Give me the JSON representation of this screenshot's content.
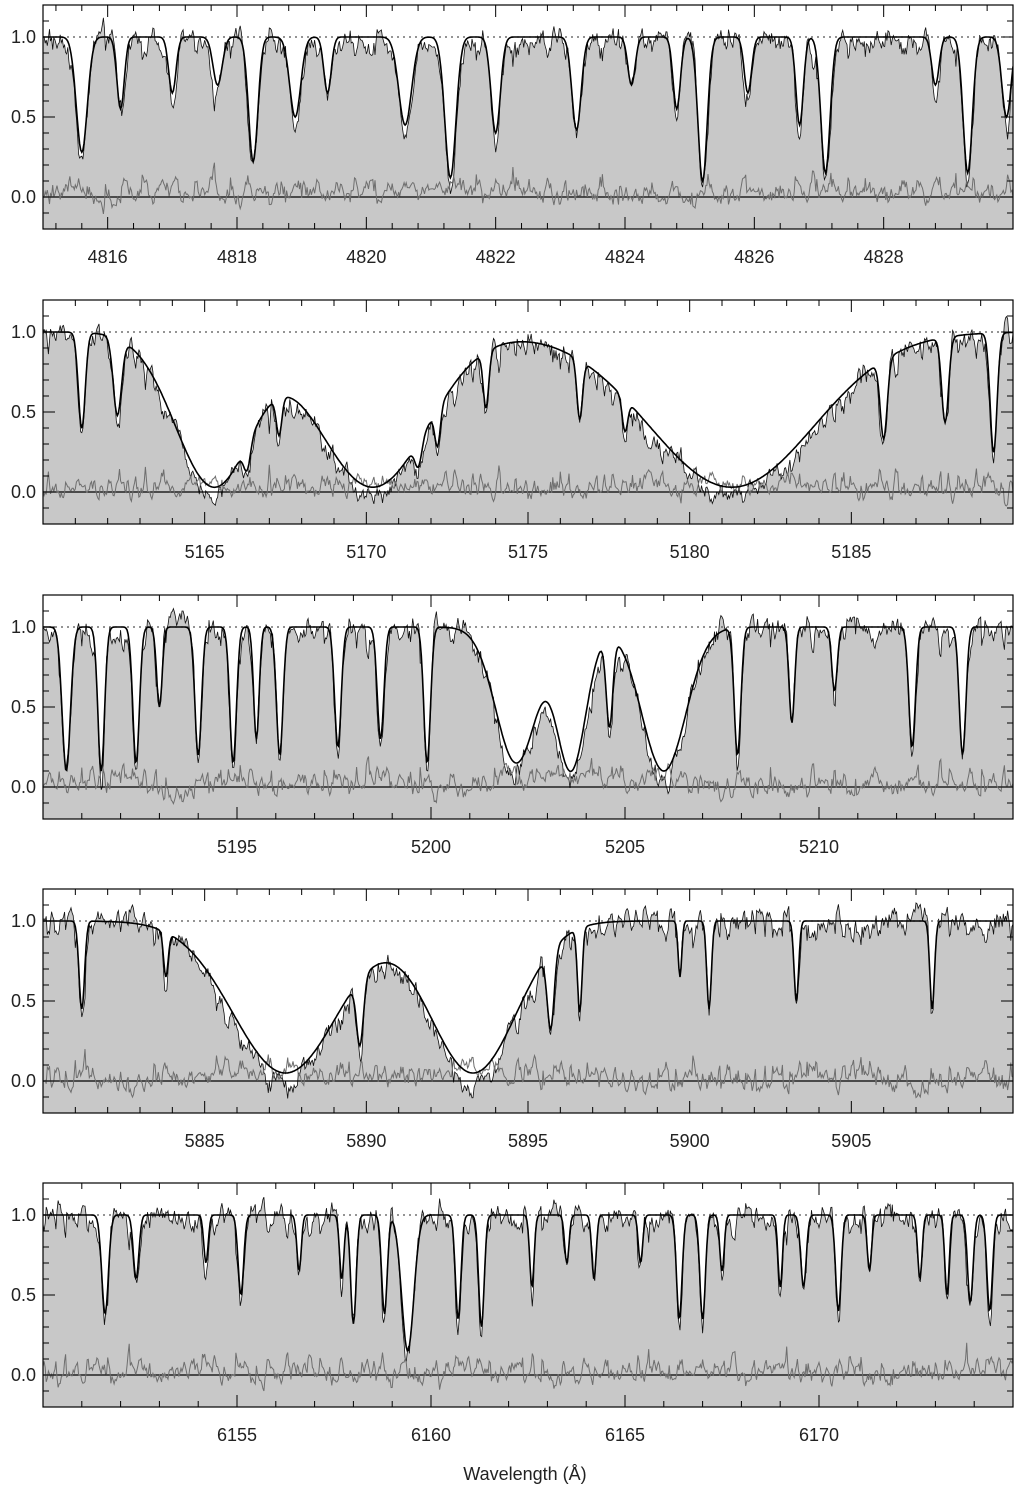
{
  "figure": {
    "xlabel": "Wavelength (Å)"
  },
  "colors": {
    "observed_fill": "#c8c8c8",
    "observed_line": "#111111",
    "model_line": "#000000",
    "residual_line": "#6e6e6e",
    "continuum_dotted": "#555555",
    "axis": "#000000"
  },
  "chart_data": [
    {
      "type": "line",
      "panel": 1,
      "xlim": [
        4815,
        4830
      ],
      "ylim": [
        -0.2,
        1.2
      ],
      "xticks": [
        4816,
        4818,
        4820,
        4822,
        4824,
        4826,
        4828
      ],
      "xtick_labels": [
        "4816",
        "4818",
        "4820",
        "4822",
        "4824",
        "4826",
        "4828"
      ],
      "yticks": [
        0.0,
        0.5,
        1.0
      ],
      "ytick_labels": [
        "0.0",
        "0.5",
        "1.0"
      ],
      "reference_lines": [
        {
          "y": 1.0,
          "style": "dotted"
        },
        {
          "y": 0.0,
          "style": "solid"
        }
      ],
      "absorption_lines": [
        {
          "x": 4815.6,
          "depth": 0.72,
          "width": 0.12
        },
        {
          "x": 4816.2,
          "depth": 0.45,
          "width": 0.08
        },
        {
          "x": 4817.0,
          "depth": 0.35,
          "width": 0.08
        },
        {
          "x": 4817.7,
          "depth": 0.3,
          "width": 0.1
        },
        {
          "x": 4818.25,
          "depth": 0.78,
          "width": 0.1
        },
        {
          "x": 4818.9,
          "depth": 0.5,
          "width": 0.12
        },
        {
          "x": 4819.4,
          "depth": 0.35,
          "width": 0.08
        },
        {
          "x": 4820.6,
          "depth": 0.55,
          "width": 0.14
        },
        {
          "x": 4821.3,
          "depth": 0.88,
          "width": 0.12
        },
        {
          "x": 4822.0,
          "depth": 0.6,
          "width": 0.1
        },
        {
          "x": 4823.25,
          "depth": 0.58,
          "width": 0.1
        },
        {
          "x": 4824.1,
          "depth": 0.3,
          "width": 0.08
        },
        {
          "x": 4824.8,
          "depth": 0.45,
          "width": 0.08
        },
        {
          "x": 4825.2,
          "depth": 0.9,
          "width": 0.1
        },
        {
          "x": 4825.9,
          "depth": 0.35,
          "width": 0.08
        },
        {
          "x": 4826.7,
          "depth": 0.55,
          "width": 0.08
        },
        {
          "x": 4827.1,
          "depth": 0.85,
          "width": 0.1
        },
        {
          "x": 4828.8,
          "depth": 0.3,
          "width": 0.08
        },
        {
          "x": 4829.3,
          "depth": 0.85,
          "width": 0.1
        },
        {
          "x": 4829.9,
          "depth": 0.5,
          "width": 0.1
        }
      ],
      "broad_lines": []
    },
    {
      "type": "line",
      "panel": 2,
      "xlim": [
        5160,
        5190
      ],
      "ylim": [
        -0.2,
        1.2
      ],
      "xticks": [
        5165,
        5170,
        5175,
        5180,
        5185
      ],
      "xtick_labels": [
        "5165",
        "5170",
        "5175",
        "5180",
        "5185"
      ],
      "yticks": [
        0.0,
        0.5,
        1.0
      ],
      "ytick_labels": [
        "0.0",
        "0.5",
        "1.0"
      ],
      "reference_lines": [
        {
          "y": 1.0,
          "style": "dotted"
        },
        {
          "y": 0.0,
          "style": "solid"
        }
      ],
      "absorption_lines": [
        {
          "x": 5161.2,
          "depth": 0.6,
          "width": 0.15
        },
        {
          "x": 5162.3,
          "depth": 0.5,
          "width": 0.18
        },
        {
          "x": 5166.3,
          "depth": 0.55,
          "width": 0.15
        },
        {
          "x": 5167.3,
          "depth": 0.4,
          "width": 0.12
        },
        {
          "x": 5171.6,
          "depth": 0.5,
          "width": 0.15
        },
        {
          "x": 5172.2,
          "depth": 0.45,
          "width": 0.12
        },
        {
          "x": 5173.7,
          "depth": 0.4,
          "width": 0.12
        },
        {
          "x": 5176.6,
          "depth": 0.45,
          "width": 0.12
        },
        {
          "x": 5178.0,
          "depth": 0.35,
          "width": 0.12
        },
        {
          "x": 5186.0,
          "depth": 0.6,
          "width": 0.15
        },
        {
          "x": 5187.9,
          "depth": 0.55,
          "width": 0.15
        },
        {
          "x": 5189.4,
          "depth": 0.75,
          "width": 0.15
        }
      ],
      "broad_lines": [
        {
          "x": 5165.3,
          "depth": 0.97,
          "width": 1.7
        },
        {
          "x": 5170.2,
          "depth": 0.97,
          "width": 2.4
        },
        {
          "x": 5181.3,
          "depth": 0.97,
          "width": 3.6
        }
      ]
    },
    {
      "type": "line",
      "panel": 3,
      "xlim": [
        5190,
        5215
      ],
      "ylim": [
        -0.2,
        1.2
      ],
      "xticks": [
        5195,
        5200,
        5205,
        5210
      ],
      "xtick_labels": [
        "5195",
        "5200",
        "5205",
        "5210"
      ],
      "yticks": [
        0.0,
        0.5,
        1.0
      ],
      "ytick_labels": [
        "0.0",
        "0.5",
        "1.0"
      ],
      "reference_lines": [
        {
          "y": 1.0,
          "style": "dotted"
        },
        {
          "y": 0.0,
          "style": "solid"
        }
      ],
      "absorption_lines": [
        {
          "x": 5190.6,
          "depth": 0.9,
          "width": 0.15
        },
        {
          "x": 5191.5,
          "depth": 0.9,
          "width": 0.12
        },
        {
          "x": 5192.4,
          "depth": 0.85,
          "width": 0.12
        },
        {
          "x": 5193.0,
          "depth": 0.5,
          "width": 0.1
        },
        {
          "x": 5194.0,
          "depth": 0.8,
          "width": 0.12
        },
        {
          "x": 5194.9,
          "depth": 0.85,
          "width": 0.12
        },
        {
          "x": 5195.5,
          "depth": 0.7,
          "width": 0.1
        },
        {
          "x": 5196.1,
          "depth": 0.8,
          "width": 0.12
        },
        {
          "x": 5197.6,
          "depth": 0.75,
          "width": 0.12
        },
        {
          "x": 5198.7,
          "depth": 0.7,
          "width": 0.12
        },
        {
          "x": 5199.9,
          "depth": 0.85,
          "width": 0.12
        },
        {
          "x": 5204.6,
          "depth": 0.6,
          "width": 0.12
        },
        {
          "x": 5207.9,
          "depth": 0.8,
          "width": 0.12
        },
        {
          "x": 5209.3,
          "depth": 0.6,
          "width": 0.1
        },
        {
          "x": 5210.4,
          "depth": 0.4,
          "width": 0.1
        },
        {
          "x": 5212.4,
          "depth": 0.75,
          "width": 0.12
        },
        {
          "x": 5213.7,
          "depth": 0.8,
          "width": 0.12
        }
      ],
      "broad_lines": [
        {
          "x": 5202.2,
          "depth": 0.85,
          "width": 0.75
        },
        {
          "x": 5203.6,
          "depth": 0.9,
          "width": 0.55
        },
        {
          "x": 5206.0,
          "depth": 0.9,
          "width": 0.8
        }
      ]
    },
    {
      "type": "line",
      "panel": 4,
      "xlim": [
        5880,
        5910
      ],
      "ylim": [
        -0.2,
        1.2
      ],
      "xticks": [
        5885,
        5890,
        5895,
        5900,
        5905
      ],
      "xtick_labels": [
        "5885",
        "5890",
        "5895",
        "5900",
        "5905"
      ],
      "yticks": [
        0.0,
        0.5,
        1.0
      ],
      "ytick_labels": [
        "0.0",
        "0.5",
        "1.0"
      ],
      "reference_lines": [
        {
          "y": 1.0,
          "style": "dotted"
        },
        {
          "y": 0.0,
          "style": "solid"
        }
      ],
      "absorption_lines": [
        {
          "x": 5881.2,
          "depth": 0.55,
          "width": 0.12
        },
        {
          "x": 5883.8,
          "depth": 0.3,
          "width": 0.1
        },
        {
          "x": 5889.8,
          "depth": 0.65,
          "width": 0.15
        },
        {
          "x": 5895.7,
          "depth": 0.6,
          "width": 0.15
        },
        {
          "x": 5896.6,
          "depth": 0.55,
          "width": 0.1
        },
        {
          "x": 5899.7,
          "depth": 0.35,
          "width": 0.08
        },
        {
          "x": 5900.6,
          "depth": 0.55,
          "width": 0.1
        },
        {
          "x": 5903.3,
          "depth": 0.5,
          "width": 0.1
        },
        {
          "x": 5907.5,
          "depth": 0.55,
          "width": 0.1
        }
      ],
      "broad_lines": [
        {
          "x": 5887.5,
          "depth": 0.95,
          "width": 2.3
        },
        {
          "x": 5893.3,
          "depth": 0.95,
          "width": 1.9
        }
      ]
    },
    {
      "type": "line",
      "panel": 5,
      "xlim": [
        6150,
        6175
      ],
      "ylim": [
        -0.2,
        1.2
      ],
      "xticks": [
        6155,
        6160,
        6165,
        6170
      ],
      "xtick_labels": [
        "6155",
        "6160",
        "6165",
        "6170"
      ],
      "yticks": [
        0.0,
        0.5,
        1.0
      ],
      "ytick_labels": [
        "0.0",
        "0.5",
        "1.0"
      ],
      "reference_lines": [
        {
          "y": 1.0,
          "style": "dotted"
        },
        {
          "y": 0.0,
          "style": "solid"
        }
      ],
      "absorption_lines": [
        {
          "x": 6151.6,
          "depth": 0.62,
          "width": 0.12
        },
        {
          "x": 6152.4,
          "depth": 0.4,
          "width": 0.1
        },
        {
          "x": 6154.2,
          "depth": 0.3,
          "width": 0.08
        },
        {
          "x": 6155.1,
          "depth": 0.5,
          "width": 0.1
        },
        {
          "x": 6156.6,
          "depth": 0.35,
          "width": 0.08
        },
        {
          "x": 6157.7,
          "depth": 0.4,
          "width": 0.08
        },
        {
          "x": 6158.0,
          "depth": 0.68,
          "width": 0.1
        },
        {
          "x": 6158.8,
          "depth": 0.62,
          "width": 0.1
        },
        {
          "x": 6159.4,
          "depth": 0.85,
          "width": 0.22
        },
        {
          "x": 6160.7,
          "depth": 0.65,
          "width": 0.1
        },
        {
          "x": 6161.3,
          "depth": 0.7,
          "width": 0.1
        },
        {
          "x": 6162.6,
          "depth": 0.45,
          "width": 0.08
        },
        {
          "x": 6163.5,
          "depth": 0.3,
          "width": 0.08
        },
        {
          "x": 6164.2,
          "depth": 0.4,
          "width": 0.08
        },
        {
          "x": 6165.4,
          "depth": 0.3,
          "width": 0.08
        },
        {
          "x": 6166.4,
          "depth": 0.65,
          "width": 0.1
        },
        {
          "x": 6167.0,
          "depth": 0.65,
          "width": 0.1
        },
        {
          "x": 6167.5,
          "depth": 0.35,
          "width": 0.08
        },
        {
          "x": 6169.0,
          "depth": 0.45,
          "width": 0.08
        },
        {
          "x": 6169.6,
          "depth": 0.45,
          "width": 0.1
        },
        {
          "x": 6170.5,
          "depth": 0.6,
          "width": 0.1
        },
        {
          "x": 6171.3,
          "depth": 0.35,
          "width": 0.08
        },
        {
          "x": 6172.6,
          "depth": 0.4,
          "width": 0.08
        },
        {
          "x": 6173.3,
          "depth": 0.5,
          "width": 0.08
        },
        {
          "x": 6173.9,
          "depth": 0.55,
          "width": 0.1
        },
        {
          "x": 6174.4,
          "depth": 0.6,
          "width": 0.1
        }
      ],
      "broad_lines": []
    }
  ]
}
